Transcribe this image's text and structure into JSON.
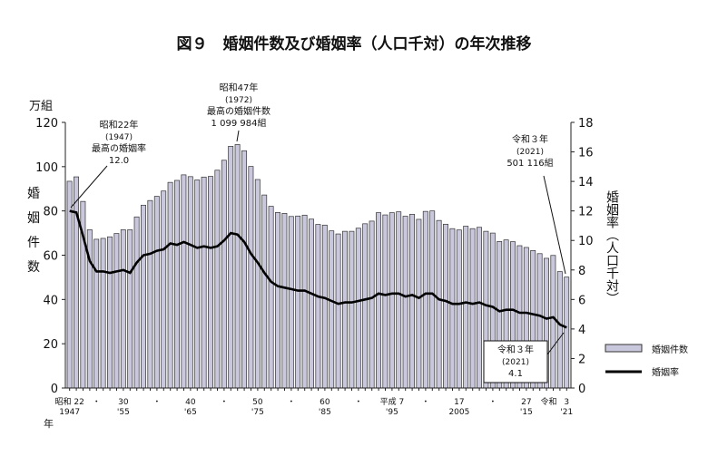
{
  "title": "図９　婚姻件数及び婚姻率（人口千対）の年次推移",
  "chart_data": {
    "type": "bar+line",
    "title": "図９　婚姻件数及び婚姻率（人口千対）の年次推移",
    "left_unit": "万組",
    "left_label": "婚姻件数",
    "right_label": "婚姻率（人口千対）",
    "left_ylim": [
      0,
      120
    ],
    "left_ticks": [
      0,
      20,
      40,
      60,
      80,
      100,
      120
    ],
    "right_ylim": [
      0,
      18
    ],
    "right_ticks": [
      0,
      2,
      4,
      6,
      8,
      10,
      12,
      14,
      16,
      18
    ],
    "x_axis_label": "年",
    "x_ticks": [
      {
        "year": 1947,
        "era": "昭和 22",
        "western": "1947"
      },
      {
        "year": 1951,
        "era": "・",
        "western": ""
      },
      {
        "year": 1955,
        "era": "30",
        "western": "'55"
      },
      {
        "year": 1960,
        "era": "・",
        "western": ""
      },
      {
        "year": 1965,
        "era": "40",
        "western": "'65"
      },
      {
        "year": 1970,
        "era": "・",
        "western": ""
      },
      {
        "year": 1975,
        "era": "50",
        "western": "'75"
      },
      {
        "year": 1980,
        "era": "・",
        "western": ""
      },
      {
        "year": 1985,
        "era": "60",
        "western": "'85"
      },
      {
        "year": 1990,
        "era": "・",
        "western": ""
      },
      {
        "year": 1995,
        "era": "平成 7",
        "western": "'95"
      },
      {
        "year": 2000,
        "era": "・",
        "western": ""
      },
      {
        "year": 2005,
        "era": "17",
        "western": "2005"
      },
      {
        "year": 2010,
        "era": "・",
        "western": ""
      },
      {
        "year": 2015,
        "era": "27",
        "western": "'15"
      },
      {
        "year": 2019,
        "era": "令和",
        "western": ""
      },
      {
        "year": 2021,
        "era": "3",
        "western": "'21"
      }
    ],
    "legend": {
      "position": "right",
      "bars": "婚姻件数",
      "line": "婚姻率"
    },
    "bar_color": "#c9c7dc",
    "years": [
      1947,
      1948,
      1949,
      1950,
      1951,
      1952,
      1953,
      1954,
      1955,
      1956,
      1957,
      1958,
      1959,
      1960,
      1961,
      1962,
      1963,
      1964,
      1965,
      1966,
      1967,
      1968,
      1969,
      1970,
      1971,
      1972,
      1973,
      1974,
      1975,
      1976,
      1977,
      1978,
      1979,
      1980,
      1981,
      1982,
      1983,
      1984,
      1985,
      1986,
      1987,
      1988,
      1989,
      1990,
      1991,
      1992,
      1993,
      1994,
      1995,
      1996,
      1997,
      1998,
      1999,
      2000,
      2001,
      2002,
      2003,
      2004,
      2005,
      2006,
      2007,
      2008,
      2009,
      2010,
      2011,
      2012,
      2013,
      2014,
      2015,
      2016,
      2017,
      2018,
      2019,
      2020,
      2021
    ],
    "series": [
      {
        "name": "婚姻件数",
        "axis": "left",
        "values": [
          93.4,
          95.4,
          84.3,
          71.5,
          67.2,
          67.6,
          68.3,
          69.8,
          71.5,
          71.5,
          77.3,
          82.6,
          84.7,
          86.6,
          89.0,
          92.9,
          93.8,
          96.3,
          95.5,
          94.0,
          95.3,
          95.6,
          98.4,
          102.9,
          109.2,
          110.0,
          107.2,
          100.1,
          94.2,
          87.2,
          82.1,
          79.3,
          78.9,
          77.5,
          77.7,
          78.1,
          76.3,
          73.9,
          73.6,
          71.0,
          69.6,
          70.8,
          70.8,
          72.2,
          74.2,
          75.4,
          79.2,
          78.2,
          79.2,
          79.6,
          77.6,
          78.5,
          76.2,
          79.8,
          80.0,
          75.7,
          74.0,
          72.0,
          71.4,
          73.1,
          72.0,
          72.6,
          70.8,
          70.0,
          66.2,
          66.9,
          66.1,
          64.3,
          63.5,
          62.1,
          60.7,
          58.6,
          59.9,
          52.6,
          50.1
        ]
      },
      {
        "name": "婚姻率",
        "axis": "right",
        "values": [
          12.0,
          11.9,
          10.3,
          8.6,
          7.9,
          7.9,
          7.8,
          7.9,
          8.0,
          7.8,
          8.5,
          9.0,
          9.1,
          9.3,
          9.4,
          9.8,
          9.7,
          9.9,
          9.7,
          9.5,
          9.6,
          9.5,
          9.6,
          10.0,
          10.5,
          10.4,
          9.9,
          9.1,
          8.5,
          7.8,
          7.2,
          6.9,
          6.8,
          6.7,
          6.6,
          6.6,
          6.4,
          6.2,
          6.1,
          5.9,
          5.7,
          5.8,
          5.8,
          5.9,
          6.0,
          6.1,
          6.4,
          6.3,
          6.4,
          6.4,
          6.2,
          6.3,
          6.1,
          6.4,
          6.4,
          6.0,
          5.9,
          5.7,
          5.7,
          5.8,
          5.7,
          5.8,
          5.6,
          5.5,
          5.2,
          5.3,
          5.3,
          5.1,
          5.1,
          5.0,
          4.9,
          4.7,
          4.8,
          4.3,
          4.1
        ]
      }
    ],
    "annotations": [
      {
        "year": 1947,
        "lines": [
          "昭和22年",
          "(1947)",
          "最高の婚姻率",
          "12.0"
        ]
      },
      {
        "year": 1972,
        "lines": [
          "昭和47年",
          "(1972)",
          "最高の婚姻件数",
          "1 099 984組"
        ]
      },
      {
        "year": 2021,
        "lines": [
          "令和３年",
          "(2021)",
          "501 116組"
        ]
      },
      {
        "year": 2021,
        "lines": [
          "令和３年",
          "(2021)",
          "4.1"
        ],
        "boxed": true
      }
    ]
  }
}
